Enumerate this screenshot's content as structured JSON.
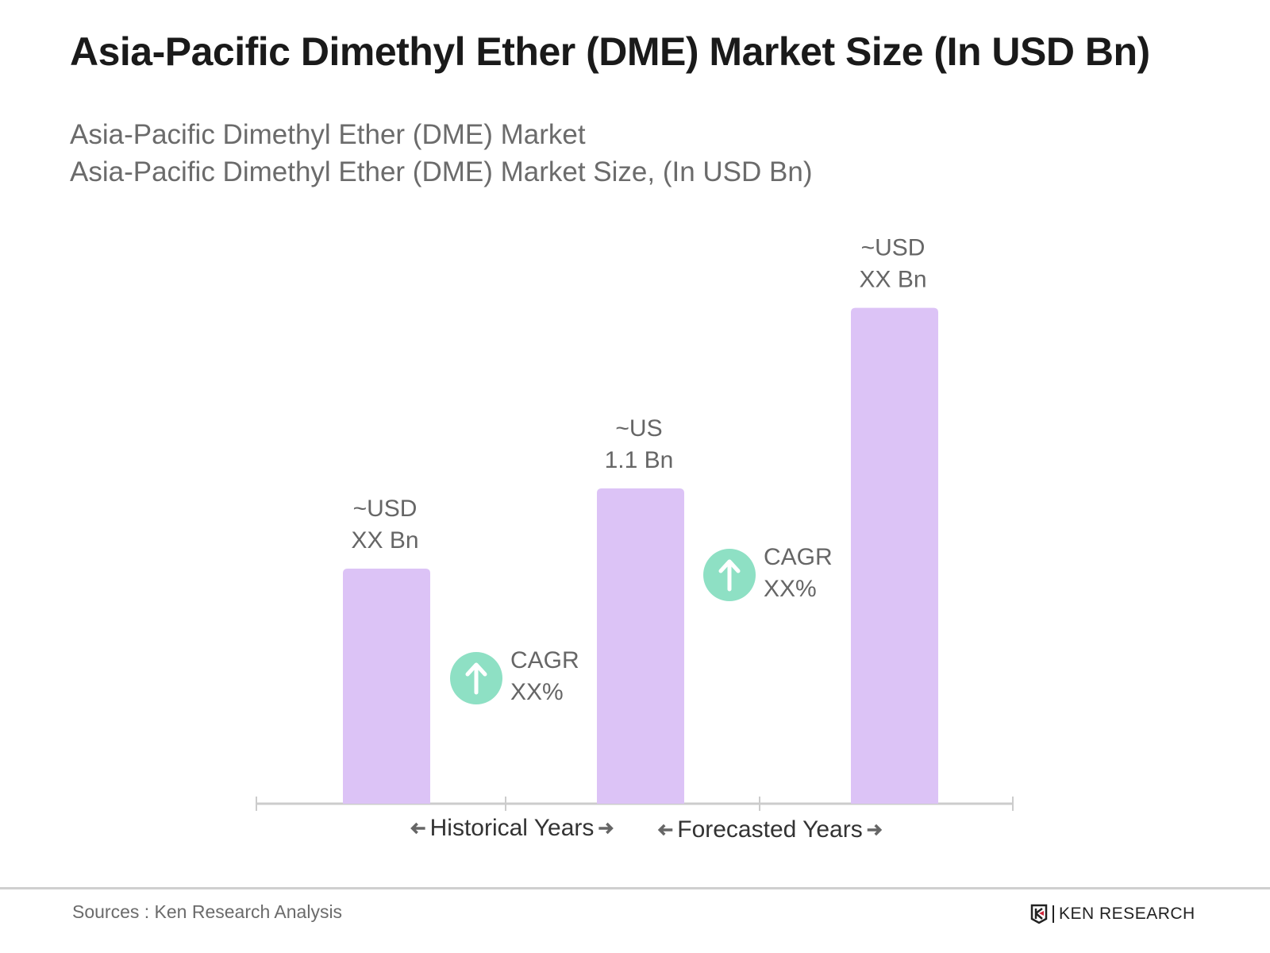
{
  "header": {
    "title": "Asia-Pacific Dimethyl Ether (DME) Market Size (In USD Bn)",
    "subtitle_1": "Asia-Pacific Dimethyl Ether (DME) Market",
    "subtitle_2": "Asia-Pacific Dimethyl Ether (DME) Market Size, (In USD Bn)"
  },
  "chart_data": {
    "type": "bar",
    "categories": [
      "",
      "",
      ""
    ],
    "values": [
      0.82,
      1.1,
      1.73
    ],
    "data_labels": [
      [
        "~USD",
        "XX Bn"
      ],
      [
        "~US",
        "1.1 Bn"
      ],
      [
        "~USD",
        "XX Bn"
      ]
    ],
    "bar_color": "#dcc3f6",
    "axis_color": "#cccccc",
    "grid": false,
    "period_labels": [
      "Historical Years",
      "Forecasted Years"
    ],
    "annotations": [
      {
        "icon": "arrow-up-icon",
        "color": "#8ee0c4",
        "line1": "CAGR",
        "line2": "XX%"
      },
      {
        "icon": "arrow-up-icon",
        "color": "#8ee0c4",
        "line1": "CAGR",
        "line2": "XX%"
      }
    ]
  },
  "footer": {
    "source": "Sources : Ken Research Analysis",
    "logo_text": "KEN RESEARCH"
  }
}
